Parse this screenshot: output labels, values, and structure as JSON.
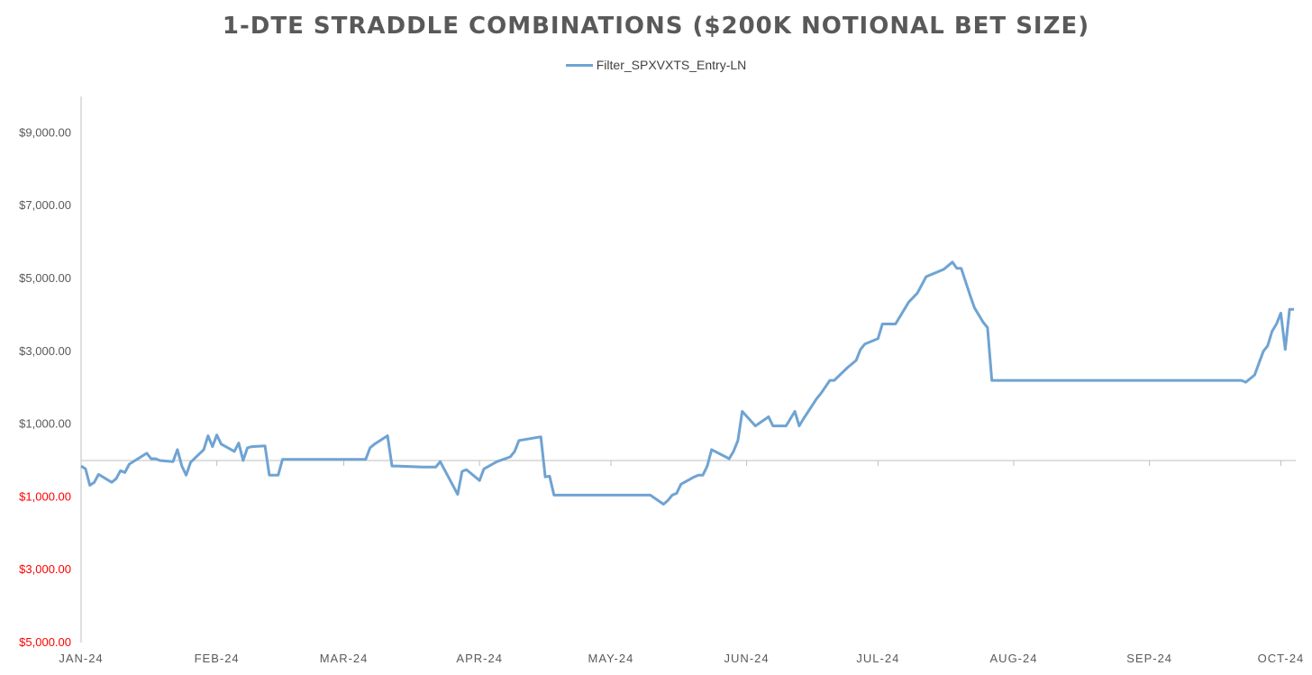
{
  "chart_data": {
    "type": "line",
    "title": "1-DTE STRADDLE COMBINATIONS ($200K NOTIONAL BET SIZE)",
    "legend_position": "top",
    "grid": false,
    "colors": {
      "series": "#6fa3d2",
      "negative_label": "#ff0000",
      "positive_label": "#595959",
      "axis": "#bfbfbf"
    },
    "ylim": [
      -5000,
      10000
    ],
    "y_ticks": [
      {
        "value": 9000,
        "label": "$9,000.00",
        "negative": false
      },
      {
        "value": 7000,
        "label": "$7,000.00",
        "negative": false
      },
      {
        "value": 5000,
        "label": "$5,000.00",
        "negative": false
      },
      {
        "value": 3000,
        "label": "$3,000.00",
        "negative": false
      },
      {
        "value": 1000,
        "label": "$1,000.00",
        "negative": false
      },
      {
        "value": -1000,
        "label": "$1,000.00",
        "negative": true
      },
      {
        "value": -3000,
        "label": "$3,000.00",
        "negative": true
      },
      {
        "value": -5000,
        "label": "$5,000.00",
        "negative": true
      }
    ],
    "x_ticks": [
      {
        "date": "2024-01-01",
        "label": "JAN-24"
      },
      {
        "date": "2024-02-01",
        "label": "FEB-24"
      },
      {
        "date": "2024-03-01",
        "label": "MAR-24"
      },
      {
        "date": "2024-04-01",
        "label": "APR-24"
      },
      {
        "date": "2024-05-01",
        "label": "MAY-24"
      },
      {
        "date": "2024-06-01",
        "label": "JUN-24"
      },
      {
        "date": "2024-07-01",
        "label": "JUL-24"
      },
      {
        "date": "2024-08-01",
        "label": "AUG-24"
      },
      {
        "date": "2024-09-01",
        "label": "SEP-24"
      },
      {
        "date": "2024-10-01",
        "label": "OCT-24"
      }
    ],
    "xlim": [
      "2024-01-01",
      "2024-10-04"
    ],
    "series": [
      {
        "name": "Filter_SPXVXTS_Entry-LN",
        "points": [
          [
            "2024-01-01",
            -150
          ],
          [
            "2024-01-02",
            -230
          ],
          [
            "2024-01-03",
            -680
          ],
          [
            "2024-01-04",
            -600
          ],
          [
            "2024-01-05",
            -380
          ],
          [
            "2024-01-08",
            -600
          ],
          [
            "2024-01-09",
            -500
          ],
          [
            "2024-01-10",
            -280
          ],
          [
            "2024-01-11",
            -330
          ],
          [
            "2024-01-12",
            -100
          ],
          [
            "2024-01-16",
            200
          ],
          [
            "2024-01-17",
            50
          ],
          [
            "2024-01-18",
            50
          ],
          [
            "2024-01-19",
            0
          ],
          [
            "2024-01-22",
            -30
          ],
          [
            "2024-01-23",
            300
          ],
          [
            "2024-01-24",
            -150
          ],
          [
            "2024-01-25",
            -400
          ],
          [
            "2024-01-26",
            -50
          ],
          [
            "2024-01-29",
            300
          ],
          [
            "2024-01-30",
            680
          ],
          [
            "2024-01-31",
            380
          ],
          [
            "2024-02-01",
            700
          ],
          [
            "2024-02-02",
            450
          ],
          [
            "2024-02-05",
            250
          ],
          [
            "2024-02-06",
            480
          ],
          [
            "2024-02-07",
            0
          ],
          [
            "2024-02-08",
            350
          ],
          [
            "2024-02-09",
            380
          ],
          [
            "2024-02-12",
            400
          ],
          [
            "2024-02-13",
            -400
          ],
          [
            "2024-02-14",
            -400
          ],
          [
            "2024-02-15",
            -400
          ],
          [
            "2024-02-16",
            30
          ],
          [
            "2024-02-19",
            30
          ],
          [
            "2024-02-20",
            30
          ],
          [
            "2024-03-06",
            30
          ],
          [
            "2024-03-07",
            350
          ],
          [
            "2024-03-08",
            450
          ],
          [
            "2024-03-11",
            680
          ],
          [
            "2024-03-12",
            -150
          ],
          [
            "2024-03-13",
            -150
          ],
          [
            "2024-03-19",
            -180
          ],
          [
            "2024-03-22",
            -180
          ],
          [
            "2024-03-23",
            -30
          ],
          [
            "2024-03-27",
            -930
          ],
          [
            "2024-03-28",
            -300
          ],
          [
            "2024-03-29",
            -250
          ],
          [
            "2024-04-01",
            -550
          ],
          [
            "2024-04-02",
            -230
          ],
          [
            "2024-04-05",
            -30
          ],
          [
            "2024-04-08",
            100
          ],
          [
            "2024-04-09",
            250
          ],
          [
            "2024-04-10",
            550
          ],
          [
            "2024-04-15",
            650
          ],
          [
            "2024-04-16",
            -450
          ],
          [
            "2024-04-17",
            -430
          ],
          [
            "2024-04-18",
            -950
          ],
          [
            "2024-05-03",
            -950
          ],
          [
            "2024-05-10",
            -950
          ],
          [
            "2024-05-13",
            -1200
          ],
          [
            "2024-05-14",
            -1100
          ],
          [
            "2024-05-15",
            -950
          ],
          [
            "2024-05-16",
            -900
          ],
          [
            "2024-05-17",
            -650
          ],
          [
            "2024-05-20",
            -450
          ],
          [
            "2024-05-21",
            -400
          ],
          [
            "2024-05-22",
            -400
          ],
          [
            "2024-05-23",
            -150
          ],
          [
            "2024-05-24",
            300
          ],
          [
            "2024-05-28",
            50
          ],
          [
            "2024-05-29",
            250
          ],
          [
            "2024-05-30",
            550
          ],
          [
            "2024-05-31",
            1350
          ],
          [
            "2024-06-03",
            950
          ],
          [
            "2024-06-06",
            1200
          ],
          [
            "2024-06-07",
            950
          ],
          [
            "2024-06-10",
            950
          ],
          [
            "2024-06-12",
            1350
          ],
          [
            "2024-06-13",
            950
          ],
          [
            "2024-06-14",
            1150
          ],
          [
            "2024-06-17",
            1700
          ],
          [
            "2024-06-18",
            1850
          ],
          [
            "2024-06-20",
            2200
          ],
          [
            "2024-06-21",
            2200
          ],
          [
            "2024-06-24",
            2550
          ],
          [
            "2024-06-26",
            2750
          ],
          [
            "2024-06-27",
            3050
          ],
          [
            "2024-06-28",
            3200
          ],
          [
            "2024-07-01",
            3350
          ],
          [
            "2024-07-02",
            3750
          ],
          [
            "2024-07-05",
            3750
          ],
          [
            "2024-07-08",
            4350
          ],
          [
            "2024-07-10",
            4600
          ],
          [
            "2024-07-12",
            5050
          ],
          [
            "2024-07-16",
            5250
          ],
          [
            "2024-07-18",
            5450
          ],
          [
            "2024-07-19",
            5280
          ],
          [
            "2024-07-20",
            5280
          ],
          [
            "2024-07-22",
            4550
          ],
          [
            "2024-07-23",
            4200
          ],
          [
            "2024-07-25",
            3800
          ],
          [
            "2024-07-26",
            3650
          ],
          [
            "2024-07-27",
            2200
          ],
          [
            "2024-09-22",
            2200
          ],
          [
            "2024-09-23",
            2150
          ],
          [
            "2024-09-25",
            2350
          ],
          [
            "2024-09-27",
            3000
          ],
          [
            "2024-09-28",
            3150
          ],
          [
            "2024-09-29",
            3550
          ],
          [
            "2024-09-30",
            3750
          ],
          [
            "2024-10-01",
            4050
          ],
          [
            "2024-10-02",
            3050
          ],
          [
            "2024-10-03",
            4150
          ],
          [
            "2024-10-04",
            4150
          ]
        ]
      }
    ]
  }
}
